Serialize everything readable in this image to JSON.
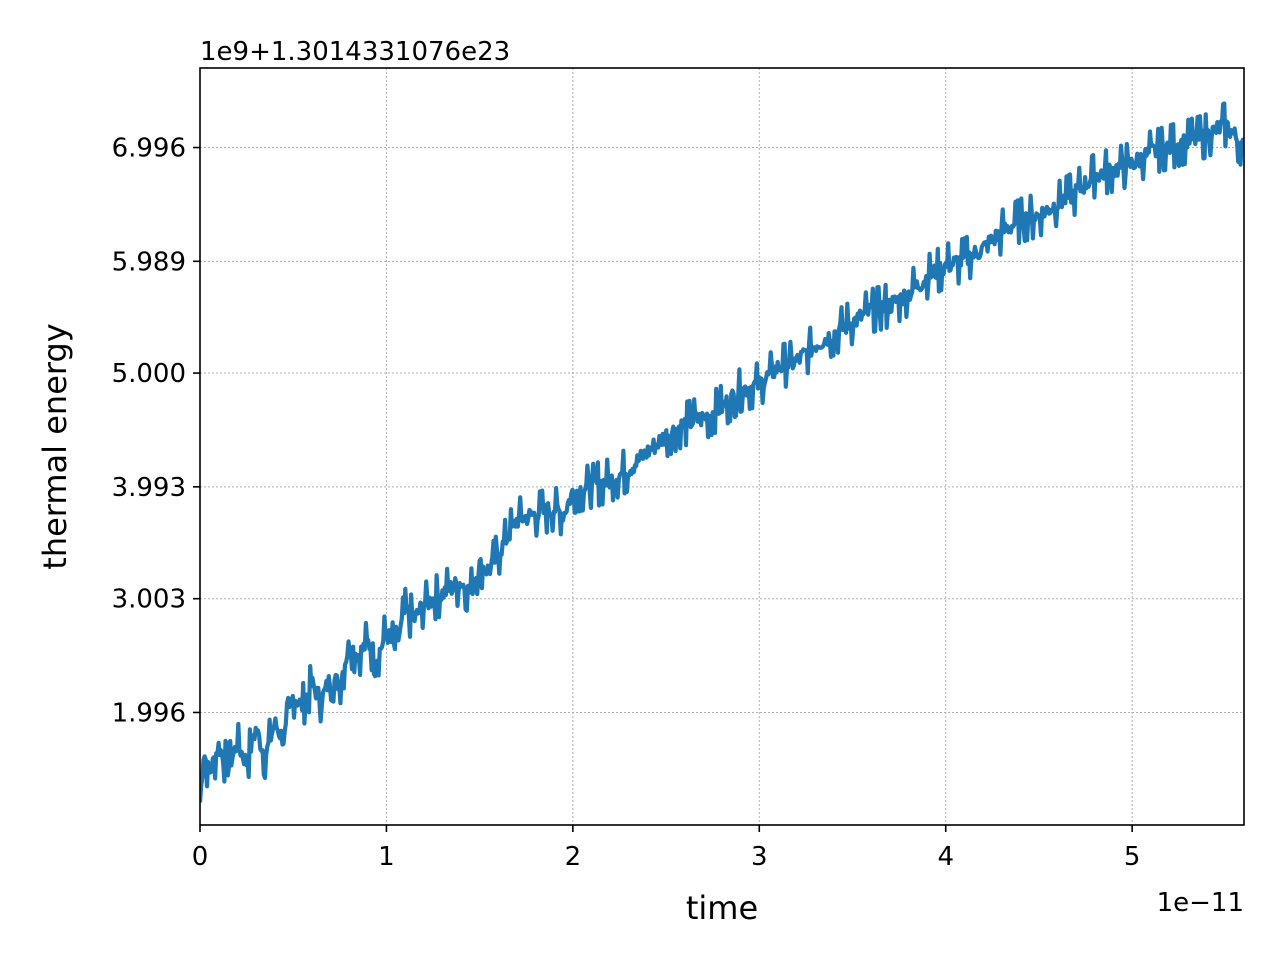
{
  "chart_data": {
    "type": "line",
    "title": "",
    "xlabel": "time",
    "ylabel": "thermal energy",
    "x_offset_text": "1e−11",
    "y_offset_text": "1e9+1.3014331076e23",
    "xlim": [
      0,
      5.6
    ],
    "ylim": [
      1.0,
      7.7
    ],
    "x_ticks": [
      0,
      1,
      2,
      3,
      4,
      5
    ],
    "x_tick_labels": [
      "0",
      "1",
      "2",
      "3",
      "4",
      "5"
    ],
    "y_ticks": [
      1.996,
      3.003,
      3.993,
      5.0,
      5.989,
      6.996
    ],
    "y_tick_labels": [
      "1.996",
      "3.003",
      "3.993",
      "5.000",
      "5.989",
      "6.996"
    ],
    "grid": true,
    "series": [
      {
        "color": "#1f77b4",
        "trend": {
          "x_start": 0.0,
          "y_start": 1.55,
          "x_end": 5.6,
          "y_end": 6.98
        },
        "oscillation_amplitude": 0.12,
        "points": [
          [
            0.0,
            1.2
          ],
          [
            0.02,
            1.65
          ],
          [
            0.05,
            1.45
          ],
          [
            0.1,
            1.7
          ],
          [
            0.15,
            1.5
          ],
          [
            0.2,
            1.72
          ],
          [
            0.25,
            1.55
          ],
          [
            0.3,
            1.85
          ],
          [
            0.35,
            1.6
          ],
          [
            0.4,
            1.9
          ],
          [
            0.45,
            1.75
          ],
          [
            0.5,
            2.15
          ],
          [
            0.55,
            2.05
          ],
          [
            0.6,
            2.25
          ],
          [
            0.65,
            2.1
          ],
          [
            0.7,
            2.3
          ],
          [
            0.75,
            2.25
          ],
          [
            0.8,
            2.6
          ],
          [
            0.85,
            2.5
          ],
          [
            0.9,
            2.62
          ],
          [
            0.95,
            2.48
          ],
          [
            1.0,
            2.7
          ],
          [
            1.05,
            2.55
          ],
          [
            1.1,
            2.9
          ],
          [
            1.15,
            2.82
          ],
          [
            1.2,
            2.95
          ],
          [
            1.3,
            3.05
          ],
          [
            1.4,
            3.15
          ],
          [
            1.45,
            3.05
          ],
          [
            1.5,
            3.3
          ],
          [
            1.55,
            3.25
          ],
          [
            1.6,
            3.4
          ],
          [
            1.65,
            3.55
          ],
          [
            1.7,
            3.7
          ],
          [
            1.8,
            3.75
          ],
          [
            1.9,
            3.8
          ],
          [
            1.95,
            3.75
          ],
          [
            2.0,
            3.95
          ],
          [
            2.1,
            4.0
          ],
          [
            2.2,
            4.05
          ],
          [
            2.3,
            4.15
          ],
          [
            2.4,
            4.3
          ],
          [
            2.5,
            4.45
          ],
          [
            2.6,
            4.55
          ],
          [
            2.7,
            4.6
          ],
          [
            2.8,
            4.7
          ],
          [
            2.9,
            4.85
          ],
          [
            3.0,
            4.9
          ],
          [
            3.1,
            5.05
          ],
          [
            3.2,
            5.1
          ],
          [
            3.3,
            5.25
          ],
          [
            3.4,
            5.35
          ],
          [
            3.5,
            5.45
          ],
          [
            3.6,
            5.55
          ],
          [
            3.7,
            5.6
          ],
          [
            3.8,
            5.7
          ],
          [
            3.9,
            5.85
          ],
          [
            4.0,
            5.95
          ],
          [
            4.1,
            6.0
          ],
          [
            4.2,
            6.1
          ],
          [
            4.3,
            6.25
          ],
          [
            4.4,
            6.35
          ],
          [
            4.5,
            6.4
          ],
          [
            4.6,
            6.5
          ],
          [
            4.7,
            6.6
          ],
          [
            4.8,
            6.75
          ],
          [
            4.9,
            6.8
          ],
          [
            5.0,
            6.85
          ],
          [
            5.1,
            6.95
          ],
          [
            5.2,
            7.0
          ],
          [
            5.3,
            7.05
          ],
          [
            5.4,
            7.1
          ],
          [
            5.5,
            7.2
          ],
          [
            5.6,
            7.0
          ]
        ]
      }
    ]
  }
}
